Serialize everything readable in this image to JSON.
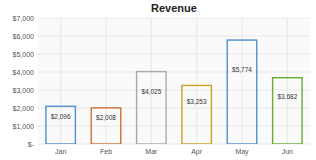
{
  "chart_data": {
    "type": "bar",
    "title": "Revenue",
    "categories": [
      "Jan",
      "Feb",
      "Mar",
      "Apr",
      "May",
      "Jun"
    ],
    "values": [
      2096,
      2008,
      4025,
      3253,
      5774,
      3682
    ],
    "value_labels": [
      "$2,096",
      "$2,008",
      "$4,025",
      "$3,253",
      "$5,774",
      "$3,682"
    ],
    "data_labels": true,
    "colors": [
      "#4f8fce",
      "#d4703a",
      "#aaaaaa",
      "#c9a020",
      "#4f8fce",
      "#6aaa30"
    ],
    "ylim": [
      0,
      7000
    ],
    "yticks": [
      {
        "value": 0,
        "label": "$-"
      },
      {
        "value": 1000,
        "label": "$1,000"
      },
      {
        "value": 2000,
        "label": "$2,000"
      },
      {
        "value": 3000,
        "label": "$3,000"
      },
      {
        "value": 4000,
        "label": "$4,000"
      },
      {
        "value": 5000,
        "label": "$5,000"
      },
      {
        "value": 6000,
        "label": "$6,000"
      },
      {
        "value": 7000,
        "label": "$7,000"
      }
    ],
    "grid": true
  }
}
